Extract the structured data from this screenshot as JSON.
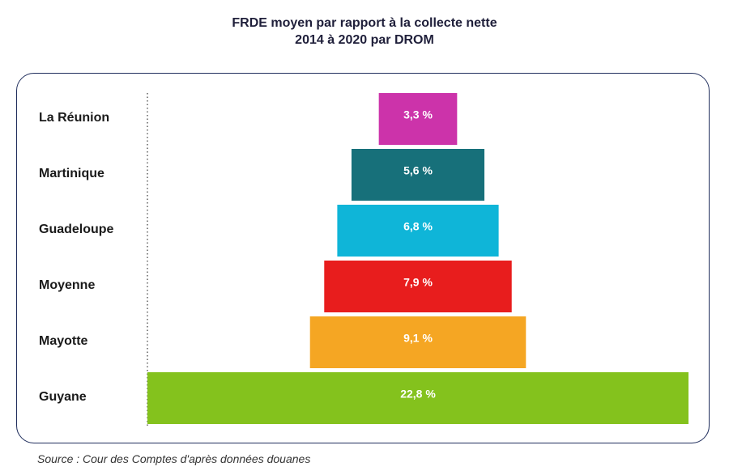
{
  "chart_data": {
    "type": "bar",
    "orientation": "horizontal",
    "title_line1": "FRDE moyen par rapport à la collecte nette",
    "title_line2": "2014 à 2020 par DROM",
    "categories": [
      "La Réunion",
      "Martinique",
      "Guadeloupe",
      "Moyenne",
      "Mayotte",
      "Guyane"
    ],
    "values": [
      3.3,
      5.6,
      6.8,
      7.9,
      9.1,
      22.8
    ],
    "value_labels": [
      "3,3 %",
      "5,6 %",
      "6,8 %",
      "7,9 %",
      "9,1 %",
      "22,8 %"
    ],
    "colors": [
      "#cc33aa",
      "#17707a",
      "#0fb5d8",
      "#e81d1d",
      "#f5a623",
      "#84c21d"
    ],
    "bar_alignment": "centered",
    "grid": false,
    "legend": "none"
  },
  "source": "Source : Cour des Comptes d'après données douanes"
}
